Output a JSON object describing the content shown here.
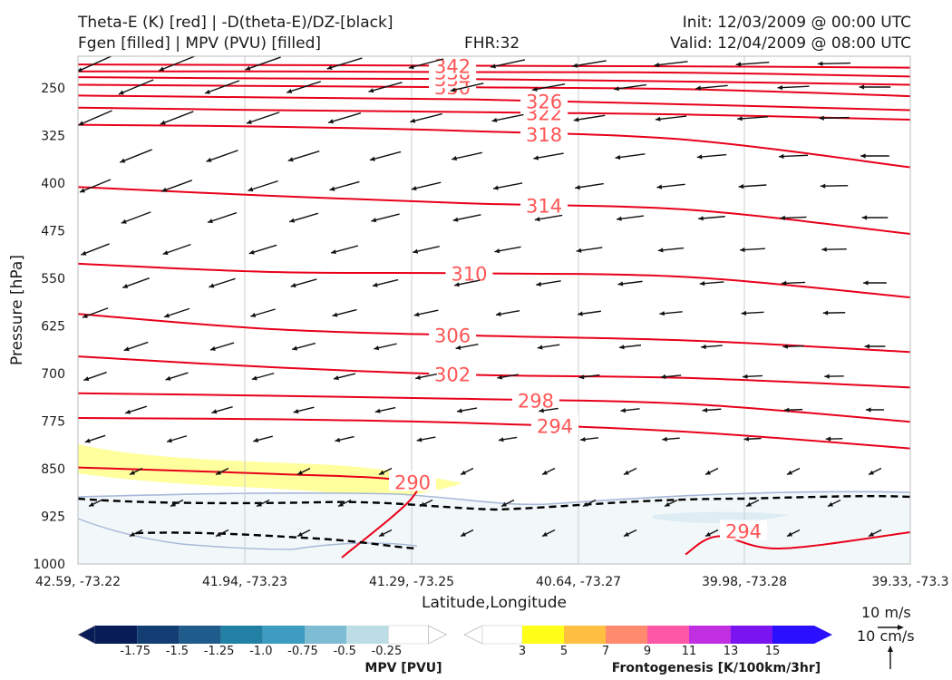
{
  "header": {
    "title_line1": "Theta-E (K) [red] | -D(theta-E)/DZ-[black]",
    "title_line2": "Fgen [filled] | MPV (PVU) [filled]",
    "fhr": "FHR:32",
    "init": "Init: 12/03/2009 @ 00:00 UTC",
    "valid": "Valid: 12/04/2009 @ 08:00 UTC"
  },
  "chart_data": {
    "type": "cross-section",
    "xlabel": "Latitude,Longitude",
    "ylabel": "Pressure [hPa]",
    "y_scale": "linear, inverted",
    "ylim": [
      1000,
      200
    ],
    "y_ticks": [
      250,
      325,
      400,
      475,
      550,
      625,
      700,
      775,
      850,
      925,
      1000
    ],
    "x_ticks": [
      "42.59, -73.22",
      "41.94, -73.23",
      "41.29, -73.25",
      "40.64, -73.27",
      "39.98, -73.28",
      "39.33, -73.3"
    ],
    "theta_e_contours": [
      {
        "label": "290",
        "p": [
          848,
          858,
          868,
          895,
          990
        ]
      },
      {
        "label": "294",
        "p": [
          770,
          772,
          778,
          792,
          818
        ]
      },
      {
        "label": "294",
        "p": [
          985,
          950
        ]
      },
      {
        "label": "298",
        "p": [
          731,
          735,
          740,
          748,
          776
        ]
      },
      {
        "label": "302",
        "p": [
          673,
          690,
          702,
          707,
          722
        ]
      },
      {
        "label": "306",
        "p": [
          606,
          630,
          640,
          648,
          666
        ]
      },
      {
        "label": "310",
        "p": [
          527,
          540,
          542,
          548,
          580
        ]
      },
      {
        "label": "314",
        "p": [
          406,
          420,
          432,
          442,
          480
        ]
      },
      {
        "label": "318",
        "p": [
          308,
          311,
          318,
          332,
          375
        ]
      },
      {
        "label": "322",
        "p": [
          281,
          285,
          288,
          292,
          300
        ]
      },
      {
        "label": "326",
        "p": [
          262,
          265,
          268,
          276,
          285
        ]
      },
      {
        "label": "330",
        "p": [
          245,
          247,
          249,
          252,
          263
        ]
      },
      {
        "label": "334",
        "p": [
          233,
          235,
          236,
          240,
          245
        ]
      },
      {
        "label": "338",
        "p": [
          224,
          224,
          225,
          226,
          232
        ]
      },
      {
        "label": "342",
        "p": [
          213,
          214,
          215,
          216,
          218
        ]
      }
    ],
    "mpv_filled": {
      "levels": [
        -1.75,
        -1.5,
        -1.25,
        -1.0,
        -0.75,
        -0.5,
        -0.25
      ],
      "colors": [
        "#081d58",
        "#123e73",
        "#1f5c8c",
        "#2280a5",
        "#3d9cbf",
        "#7dbcd3",
        "#bcdce6",
        "#ffffff"
      ]
    },
    "fgen_filled": {
      "levels": [
        3,
        5,
        7,
        9,
        11,
        13,
        15
      ],
      "colors": [
        "#ffffff",
        "#ffff1a",
        "#ffbf40",
        "#ff8a6e",
        "#ff57a8",
        "#c030e0",
        "#7a14f0",
        "#2a10ff"
      ]
    },
    "wind_reference": {
      "horizontal": "10 m/s",
      "vertical": "10 cm/s"
    }
  },
  "colorbars": {
    "mpv": {
      "title": "MPV [PVU]",
      "labels": [
        "-1.75",
        "-1.5",
        "-1.25",
        "-1.0",
        "-0.75",
        "-0.5",
        "-0.25"
      ]
    },
    "fgen": {
      "title": "Frontogenesis [K/100km/3hr]",
      "labels": [
        "3",
        "5",
        "7",
        "9",
        "11",
        "13",
        "15"
      ]
    }
  }
}
